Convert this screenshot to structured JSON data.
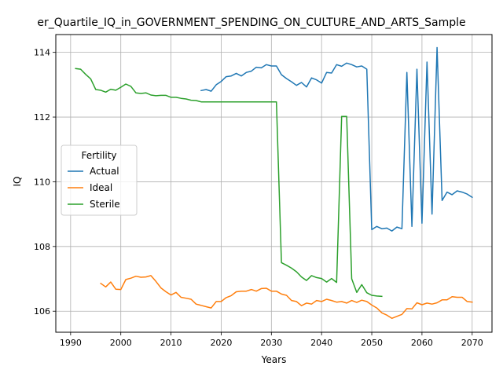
{
  "chart_data": {
    "type": "line",
    "title": "er_Quartile_IQ_in_GOVERNMENT_SPENDING_ON_CULTURE_AND_ARTS_Sample",
    "xlabel": "Years",
    "ylabel": "IQ",
    "xlim": [
      1987.05,
      2073.95
    ],
    "ylim": [
      105.35,
      114.55
    ],
    "xticks": [
      1990,
      2000,
      2010,
      2020,
      2030,
      2040,
      2050,
      2060,
      2070
    ],
    "yticks": [
      106,
      108,
      110,
      112,
      114
    ],
    "grid": true,
    "legend": {
      "title": "Fertility",
      "position": "center-left"
    },
    "series": [
      {
        "name": "Actual",
        "color": "#1f77b4",
        "x": [
          2016,
          2017,
          2018,
          2019,
          2020,
          2021,
          2022,
          2023,
          2024,
          2025,
          2026,
          2027,
          2028,
          2029,
          2030,
          2031,
          2032,
          2033,
          2034,
          2035,
          2036,
          2037,
          2038,
          2039,
          2040,
          2041,
          2042,
          2043,
          2044,
          2045,
          2046,
          2047,
          2048,
          2049,
          2050,
          2051,
          2052,
          2053,
          2054,
          2055,
          2056,
          2057,
          2058,
          2059,
          2060,
          2061,
          2062,
          2063,
          2064,
          2065,
          2066,
          2067,
          2068,
          2069,
          2070
        ],
        "y": [
          112.82,
          112.85,
          112.8,
          113.0,
          113.1,
          113.25,
          113.27,
          113.35,
          113.27,
          113.38,
          113.42,
          113.54,
          113.52,
          113.62,
          113.58,
          113.58,
          113.31,
          113.19,
          113.09,
          112.98,
          113.07,
          112.93,
          113.21,
          113.15,
          113.05,
          113.38,
          113.36,
          113.62,
          113.57,
          113.67,
          113.62,
          113.55,
          113.58,
          113.48,
          108.52,
          108.62,
          108.55,
          108.57,
          108.48,
          108.6,
          108.55,
          113.38,
          108.62,
          113.48,
          108.72,
          113.7,
          109.0,
          114.15,
          109.42,
          109.68,
          109.6,
          109.72,
          109.68,
          109.62,
          109.52
        ]
      },
      {
        "name": "Ideal",
        "color": "#ff7f0e",
        "x": [
          1996,
          1997,
          1998,
          1999,
          2000,
          2001,
          2002,
          2003,
          2004,
          2005,
          2006,
          2007,
          2008,
          2009,
          2010,
          2011,
          2012,
          2013,
          2014,
          2015,
          2016,
          2017,
          2018,
          2019,
          2020,
          2021,
          2022,
          2023,
          2024,
          2025,
          2026,
          2027,
          2028,
          2029,
          2030,
          2031,
          2032,
          2033,
          2034,
          2035,
          2036,
          2037,
          2038,
          2039,
          2040,
          2041,
          2042,
          2043,
          2044,
          2045,
          2046,
          2047,
          2048,
          2049,
          2050,
          2051,
          2052,
          2053,
          2054,
          2055,
          2056,
          2057,
          2058,
          2059,
          2060,
          2061,
          2062,
          2063,
          2064,
          2065,
          2066,
          2067,
          2068,
          2069,
          2070
        ],
        "y": [
          106.86,
          106.75,
          106.9,
          106.68,
          106.67,
          106.98,
          107.02,
          107.08,
          107.05,
          107.06,
          107.1,
          106.92,
          106.72,
          106.6,
          106.5,
          106.58,
          106.43,
          106.4,
          106.37,
          106.22,
          106.18,
          106.14,
          106.1,
          106.3,
          106.3,
          106.42,
          106.48,
          106.6,
          106.62,
          106.62,
          106.67,
          106.62,
          106.7,
          106.71,
          106.62,
          106.62,
          106.53,
          106.49,
          106.33,
          106.3,
          106.17,
          106.25,
          106.22,
          106.33,
          106.3,
          106.37,
          106.33,
          106.28,
          106.3,
          106.25,
          106.33,
          106.27,
          106.34,
          106.3,
          106.19,
          106.1,
          105.95,
          105.88,
          105.78,
          105.84,
          105.9,
          106.08,
          106.07,
          106.26,
          106.2,
          106.25,
          106.22,
          106.26,
          106.35,
          106.35,
          106.45,
          106.43,
          106.43,
          106.3,
          106.28
        ]
      },
      {
        "name": "Sterile",
        "color": "#2ca02c",
        "x": [
          1991,
          1992,
          1993,
          1994,
          1995,
          1996,
          1997,
          1998,
          1999,
          2000,
          2001,
          2002,
          2003,
          2004,
          2005,
          2006,
          2007,
          2008,
          2009,
          2010,
          2011,
          2012,
          2013,
          2014,
          2015,
          2016,
          2017,
          2018,
          2019,
          2020,
          2021,
          2022,
          2023,
          2024,
          2025,
          2026,
          2027,
          2028,
          2029,
          2030,
          2031,
          2032,
          2033,
          2034,
          2035,
          2036,
          2037,
          2038,
          2039,
          2040,
          2041,
          2042,
          2043,
          2044,
          2045,
          2046,
          2047,
          2048,
          2049,
          2050,
          2051,
          2052
        ],
        "y": [
          113.5,
          113.48,
          113.32,
          113.18,
          112.85,
          112.83,
          112.77,
          112.86,
          112.83,
          112.92,
          113.02,
          112.95,
          112.75,
          112.73,
          112.75,
          112.68,
          112.66,
          112.67,
          112.67,
          112.61,
          112.61,
          112.58,
          112.56,
          112.52,
          112.51,
          112.47,
          112.47,
          112.47,
          112.47,
          112.47,
          112.47,
          112.47,
          112.47,
          112.47,
          112.47,
          112.47,
          112.47,
          112.47,
          112.47,
          112.47,
          112.47,
          107.5,
          107.42,
          107.33,
          107.22,
          107.06,
          106.95,
          107.1,
          107.04,
          107.01,
          106.9,
          107.01,
          106.89,
          112.02,
          112.02,
          107.0,
          106.58,
          106.82,
          106.57,
          106.49,
          106.47,
          106.46
        ]
      }
    ]
  }
}
